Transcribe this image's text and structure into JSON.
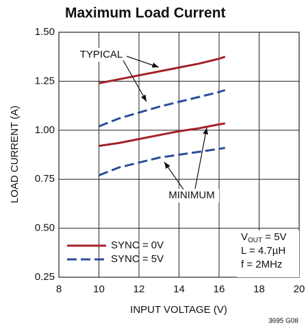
{
  "chart_data": {
    "type": "line",
    "title": "Maximum Load Current",
    "xlabel": "INPUT VOLTAGE (V)",
    "ylabel": "LOAD CURRENT (A)",
    "xlim": [
      8,
      20
    ],
    "xticks": [
      8,
      10,
      12,
      14,
      16,
      18,
      20
    ],
    "ylim": [
      0.25,
      1.5
    ],
    "yticks": [
      {
        "value": 0.25,
        "label": "0.25"
      },
      {
        "value": 0.5,
        "label": "0.50"
      },
      {
        "value": 0.75,
        "label": "0.75"
      },
      {
        "value": 1,
        "label": "1.00"
      },
      {
        "value": 1.25,
        "label": "1.25"
      },
      {
        "value": 1.5,
        "label": "1.50"
      }
    ],
    "grid": true,
    "x": [
      10,
      11,
      12,
      13,
      14,
      15,
      16,
      16.3
    ],
    "series": [
      {
        "name": "SYNC = 0V",
        "color": "#a3202a",
        "dash": false,
        "typical": [
          1.24,
          1.26,
          1.28,
          1.3,
          1.32,
          1.34,
          1.365,
          1.375
        ],
        "minimum": [
          0.92,
          0.935,
          0.955,
          0.975,
          0.995,
          1.01,
          1.03,
          1.035
        ]
      },
      {
        "name": "SYNC = 5V",
        "color": "#2a4c9c",
        "dash": true,
        "typical": [
          1.02,
          1.06,
          1.09,
          1.12,
          1.145,
          1.17,
          1.195,
          1.205
        ],
        "minimum": [
          0.77,
          0.81,
          0.835,
          0.86,
          0.875,
          0.89,
          0.905,
          0.91
        ]
      }
    ],
    "legend": "lower left",
    "annotations": [
      "TYPICAL",
      "MINIMUM"
    ],
    "conditions": {
      "vout": {
        "main": "V",
        "sub": "OUT",
        "rest": " = 5V"
      },
      "inductance": "L = 4.7µH",
      "frequency": "f = 2MHz"
    },
    "footnote": "3695 G08"
  }
}
